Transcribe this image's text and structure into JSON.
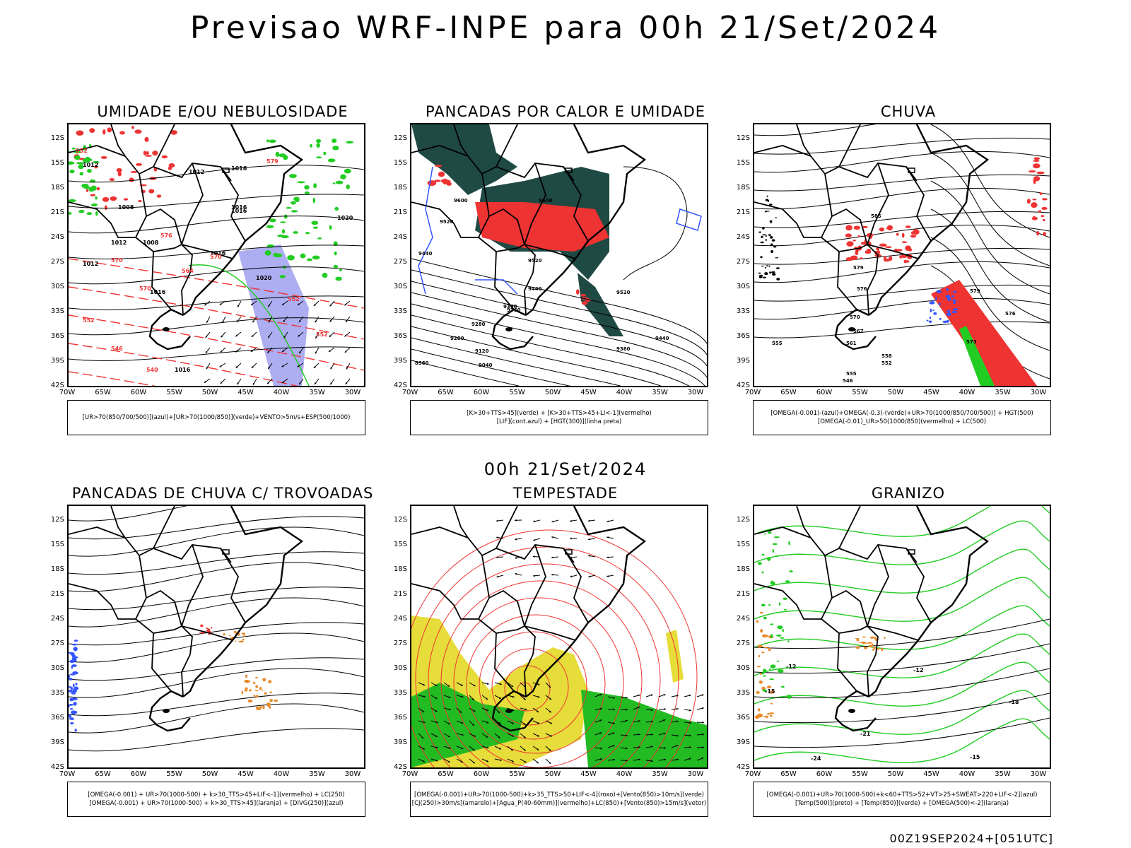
{
  "title": "Previsao WRF-INPE  para 00h 21/Set/2024",
  "mid_title": "00h 21/Set/2024",
  "footer": "00Z19SEP2024+[051UTC]",
  "axes": {
    "lat_labels": [
      "12S",
      "15S",
      "18S",
      "21S",
      "24S",
      "27S",
      "30S",
      "33S",
      "36S",
      "39S",
      "42S"
    ],
    "lon_labels": [
      "70W",
      "65W",
      "60W",
      "55W",
      "50W",
      "45W",
      "40W",
      "35W",
      "30W"
    ]
  },
  "colors": {
    "red": "#ee3333",
    "green": "#22cc22",
    "blue": "#3355ff",
    "purple": "#9999ee",
    "darkteal": "#1f4a44",
    "yellow": "#e6dc3a",
    "orange": "#e88a2a"
  },
  "panels": [
    {
      "title": "UMIDADE E/OU NEBULOSIDADE",
      "legend": [
        "[UR>70(850/700/500)](azul)+[UR>70(1000/850)](verde)+VENTO>5m/s+ESP(500/1000)"
      ]
    },
    {
      "title": "PANCADAS POR CALOR E UMIDADE",
      "legend": [
        "[K>30+TTS>45](verde)  +  [K>30+TTS>45+LI<-1](vermelho)",
        "[LIF](cont.azul)  +  [HGT(300)](linha preta)"
      ]
    },
    {
      "title": "CHUVA",
      "legend": [
        "[OMEGA(-0.001)-(azul)+OMEGA(-0.3)-(verde)+UR>70(1000/850/700/500)]  +  HGT(500)",
        "[OMEGA(-0.01)_UR>50(1000/850)(vermelho)  +  LC(500)"
      ]
    },
    {
      "title": "PANCADAS DE CHUVA C/ TROVOADAS",
      "legend": [
        "[OMEGA(-0.001) + UR>70(1000-500) + k>30_TTS>45+LIF<-1](vermelho) + LC(250)",
        "[OMEGA(-0.001) + UR>70(1000-500) + k>30_TTS>45](laranja) + [DIVG(250)](azul)"
      ]
    },
    {
      "title": "TEMPESTADE",
      "legend": [
        "[OMEGA(-0.001)+UR>70(1000-500)+k>35_TTS>50+LIF<-4](roxo)+[Vento(850)>10m/s](verde)",
        "[CJ(250)>30m/s](amarelo)+[Agua_P(40-60mm)](vermelho)+LC(850)+[Vento(850)>15m/s](vetor)"
      ]
    },
    {
      "title": "GRANIZO",
      "legend": [
        "[OMEGA(-0.001)+UR>70(1000-500)+k<60+TTS>52+VT>25+SWEAT>220+LIF<-2](azul)",
        "[Temp(500)](preto) + [Temp(850)](verde) + [OMEGA(500)<-2](laranja)"
      ]
    }
  ],
  "contour_labels": {
    "p1": [
      "1012",
      "1008",
      "1012",
      "1016",
      "1016",
      "1008",
      "1012",
      "1016",
      "1020",
      "1012",
      "1016",
      "1020",
      "1016",
      "1016"
    ],
    "p1_red": [
      "552",
      "570",
      "570",
      "579",
      "576",
      "570",
      "564",
      "552",
      "552",
      "540",
      "546",
      "552"
    ],
    "p2": [
      "9600",
      "9600",
      "9520",
      "9440",
      "9520",
      "9440",
      "9360",
      "9360",
      "9280",
      "9200",
      "9120",
      "9040",
      "8960",
      "9520",
      "9440",
      "9360"
    ],
    "p3": [
      "585",
      "579",
      "576",
      "570",
      "567",
      "561",
      "555",
      "558",
      "555",
      "552",
      "546",
      "573",
      "579",
      "576"
    ],
    "p6": [
      "-12",
      "-12",
      "-15",
      "-18",
      "-21",
      "-24",
      "-15"
    ]
  }
}
